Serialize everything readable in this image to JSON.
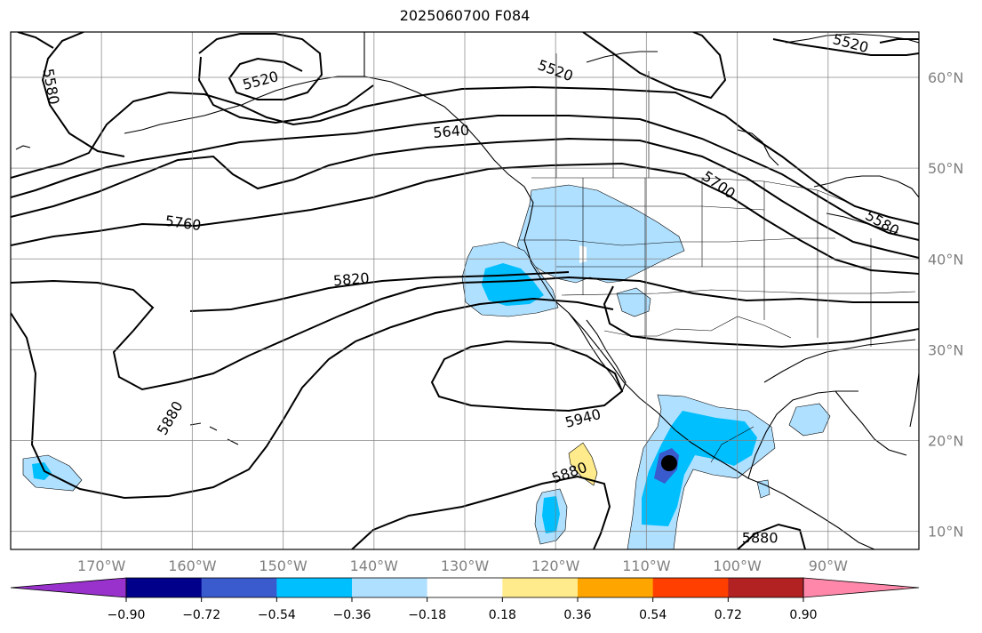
{
  "title": "2025060700 F084",
  "map": {
    "extent": {
      "lon": [
        -180,
        -80
      ],
      "lat": [
        8,
        65
      ]
    },
    "lon_ticks": [
      {
        "value": -170,
        "label": "170°W"
      },
      {
        "value": -160,
        "label": "160°W"
      },
      {
        "value": -150,
        "label": "150°W"
      },
      {
        "value": -140,
        "label": "140°W"
      },
      {
        "value": -130,
        "label": "130°W"
      },
      {
        "value": -120,
        "label": "120°W"
      },
      {
        "value": -110,
        "label": "110°W"
      },
      {
        "value": -100,
        "label": "100°W"
      },
      {
        "value": -90,
        "label": "90°W"
      }
    ],
    "lat_ticks": [
      {
        "value": 60,
        "label": "60°N"
      },
      {
        "value": 50,
        "label": "50°N"
      },
      {
        "value": 40,
        "label": "40°N"
      },
      {
        "value": 30,
        "label": "30°N"
      },
      {
        "value": 20,
        "label": "20°N"
      },
      {
        "value": 10,
        "label": "10°N"
      }
    ],
    "gridlines": true,
    "contour_labels": [
      {
        "text": "5580",
        "lon": -175.5,
        "lat": 59.0,
        "angle": 80
      },
      {
        "text": "5520",
        "lon": -152.5,
        "lat": 59.7,
        "angle": -15
      },
      {
        "text": "5520",
        "lon": -120.0,
        "lat": 60.8,
        "angle": 20
      },
      {
        "text": "5520",
        "lon": -87.5,
        "lat": 63.8,
        "angle": 15
      },
      {
        "text": "5640",
        "lon": -131.5,
        "lat": 54.1,
        "angle": -5
      },
      {
        "text": "5700",
        "lon": -102.0,
        "lat": 48.2,
        "angle": 35
      },
      {
        "text": "5580",
        "lon": -84.0,
        "lat": 44.0,
        "angle": 30
      },
      {
        "text": "5760",
        "lon": -161.0,
        "lat": 44.0,
        "angle": 8
      },
      {
        "text": "5820",
        "lon": -142.5,
        "lat": 37.8,
        "angle": -5
      },
      {
        "text": "5880",
        "lon": -162.5,
        "lat": 22.5,
        "angle": -60
      },
      {
        "text": "5940",
        "lon": -117.0,
        "lat": 22.5,
        "angle": -15
      },
      {
        "text": "5880",
        "lon": -118.5,
        "lat": 16.5,
        "angle": -20
      },
      {
        "text": "5880",
        "lon": -97.5,
        "lat": 9.3,
        "angle": 0
      }
    ],
    "marker": {
      "lon": -107.5,
      "lat": 17.5,
      "color": "#000000"
    }
  },
  "colorbar": {
    "colors": [
      "#9932CC",
      "#00008B",
      "#3A5BCD",
      "#00BFFF",
      "#B0E0FF",
      "#FFFFFF",
      "#FFEA8C",
      "#FFA500",
      "#FF3F00",
      "#B22222",
      "#FF88AA"
    ],
    "labels": [
      "−0.90",
      "−0.72",
      "−0.54",
      "−0.36",
      "−0.18",
      "0.18",
      "0.36",
      "0.54",
      "0.72",
      "0.90"
    ]
  },
  "palette": {
    "light_blue": "#B0E0FF",
    "blue": "#00BFFF",
    "mid_blue": "#3A5BCD",
    "yellow": "#FFEA8C"
  }
}
